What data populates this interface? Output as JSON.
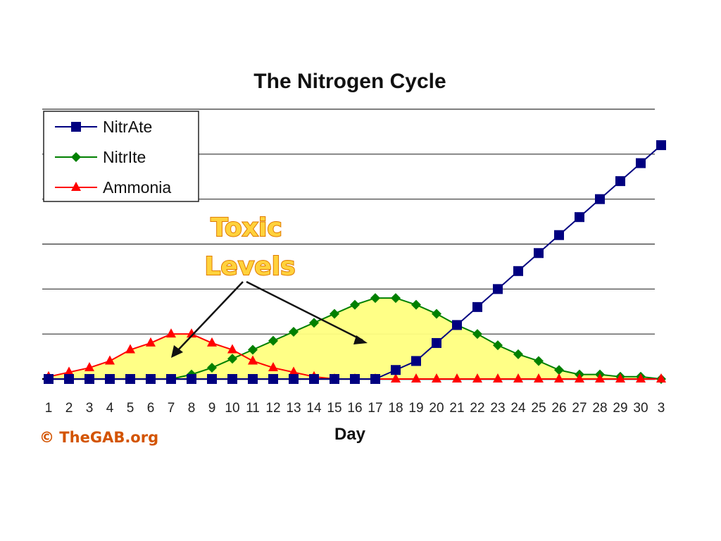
{
  "chart_data": {
    "type": "line",
    "title": "The Nitrogen Cycle",
    "xlabel": "Day",
    "ylabel": "",
    "categories": [
      "1",
      "2",
      "3",
      "4",
      "5",
      "6",
      "7",
      "8",
      "9",
      "10",
      "11",
      "12",
      "13",
      "14",
      "15",
      "16",
      "17",
      "18",
      "19",
      "20",
      "21",
      "22",
      "23",
      "24",
      "25",
      "26",
      "27",
      "28",
      "29",
      "30",
      "3"
    ],
    "series": [
      {
        "name": "NitrAte",
        "color": "#000080",
        "marker": "square",
        "values": [
          0,
          0,
          0,
          0,
          0,
          0,
          0,
          0,
          0,
          0,
          0,
          0,
          0,
          0,
          0,
          0,
          0,
          0.2,
          0.4,
          0.8,
          1.2,
          1.6,
          2.0,
          2.4,
          2.8,
          3.2,
          3.6,
          4.0,
          4.4,
          4.8,
          5.2
        ]
      },
      {
        "name": "NitrIte",
        "color": "#008000",
        "marker": "diamond",
        "values": [
          0,
          0,
          0,
          0,
          0,
          0,
          0,
          0.1,
          0.25,
          0.45,
          0.65,
          0.85,
          1.05,
          1.25,
          1.45,
          1.65,
          1.8,
          1.8,
          1.65,
          1.45,
          1.2,
          1.0,
          0.75,
          0.55,
          0.4,
          0.2,
          0.1,
          0.1,
          0.05,
          0.05,
          0
        ]
      },
      {
        "name": "Ammonia",
        "color": "#ff0000",
        "marker": "triangle",
        "values": [
          0.05,
          0.15,
          0.25,
          0.4,
          0.65,
          0.8,
          1.0,
          1.0,
          0.8,
          0.65,
          0.4,
          0.25,
          0.15,
          0.05,
          0,
          0,
          0,
          0,
          0,
          0,
          0,
          0,
          0,
          0,
          0,
          0,
          0,
          0,
          0,
          0,
          0
        ]
      }
    ],
    "ylim": [
      0,
      6
    ],
    "grid": true,
    "legend": "top-left",
    "annotations": {
      "toxic_line1": "Toxic",
      "toxic_line2": "Levels"
    },
    "fill_color": "#ffff80"
  },
  "watermark": "© TheGAB.org"
}
